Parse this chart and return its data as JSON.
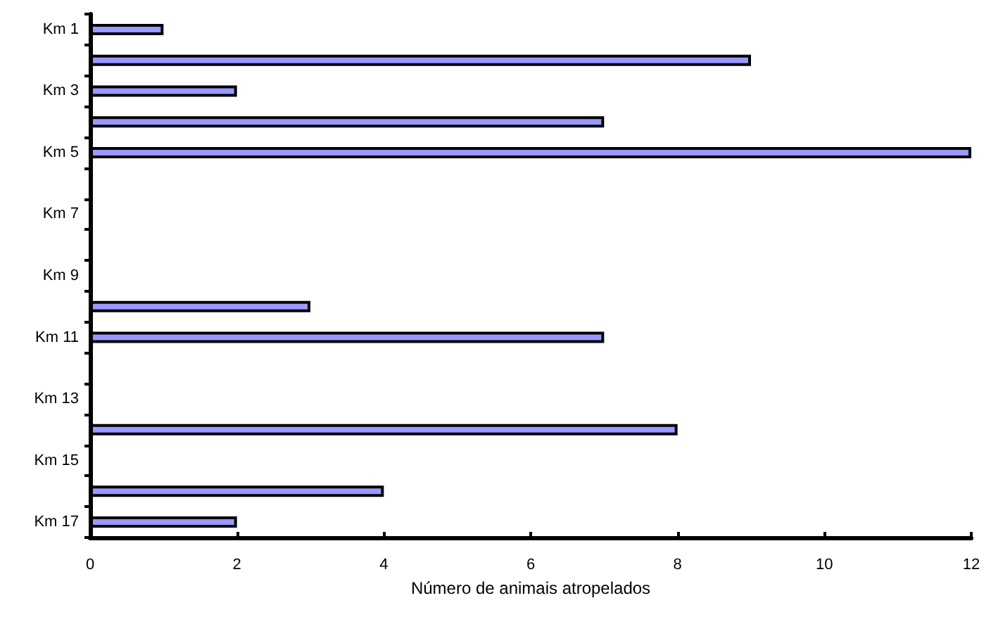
{
  "chart_data": {
    "type": "bar",
    "orientation": "horizontal",
    "xlabel": "Número de animais atropelados",
    "categories": [
      "Km 1",
      null,
      "Km 3",
      null,
      "Km 5",
      null,
      "Km 7",
      null,
      "Km 9",
      null,
      "Km 11",
      null,
      "Km 13",
      null,
      "Km 15",
      null,
      "Km 17"
    ],
    "values": [
      1,
      9,
      2,
      7,
      12,
      0,
      0,
      0,
      0,
      3,
      7,
      0,
      0,
      8,
      0,
      4,
      2
    ],
    "color": "#9999ff",
    "xlim": [
      0,
      12
    ],
    "xticks": [
      0,
      2,
      4,
      6,
      8,
      10,
      12
    ],
    "grid": false
  }
}
